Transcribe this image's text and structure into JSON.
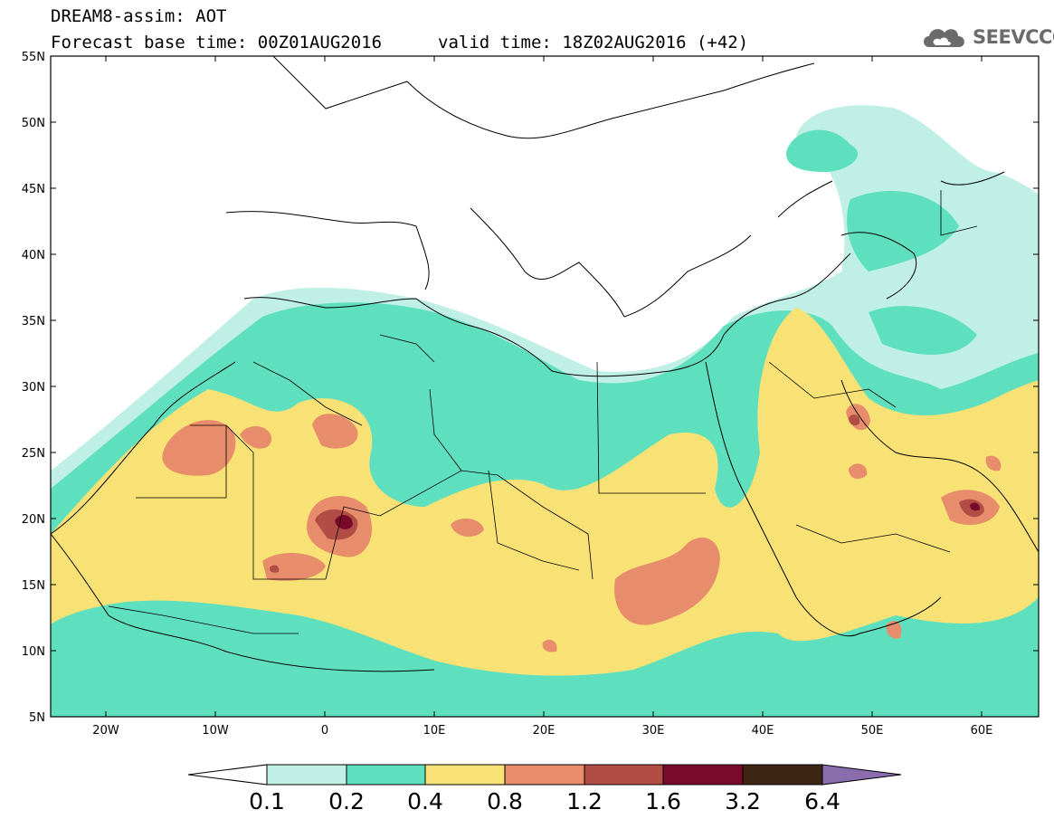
{
  "header": {
    "title": "DREAM8-assim: AOT",
    "base_time": "Forecast base time: 00Z01AUG2016",
    "valid_time": "valid time: 18Z02AUG2016 (+42)",
    "logo_text": "SEEVCCC",
    "logo_icon": "cloud-icon"
  },
  "map": {
    "lat_range": [
      5,
      55
    ],
    "lon_range": [
      -25,
      65
    ],
    "lat_labels": [
      "55N",
      "50N",
      "45N",
      "40N",
      "35N",
      "30N",
      "25N",
      "20N",
      "15N",
      "10N",
      "5N"
    ],
    "lon_labels": [
      "20W",
      "10W",
      "0",
      "10E",
      "20E",
      "30E",
      "40E",
      "50E",
      "60E"
    ]
  },
  "colorbar": {
    "labels": [
      "0.1",
      "0.2",
      "0.4",
      "0.8",
      "1.2",
      "1.6",
      "3.2",
      "6.4"
    ],
    "colors": [
      "#c0efe6",
      "#5ee0bf",
      "#f8e275",
      "#e88d6b",
      "#b24d45",
      "#7a0a2c",
      "#3e2615",
      "#8b6dae"
    ]
  }
}
